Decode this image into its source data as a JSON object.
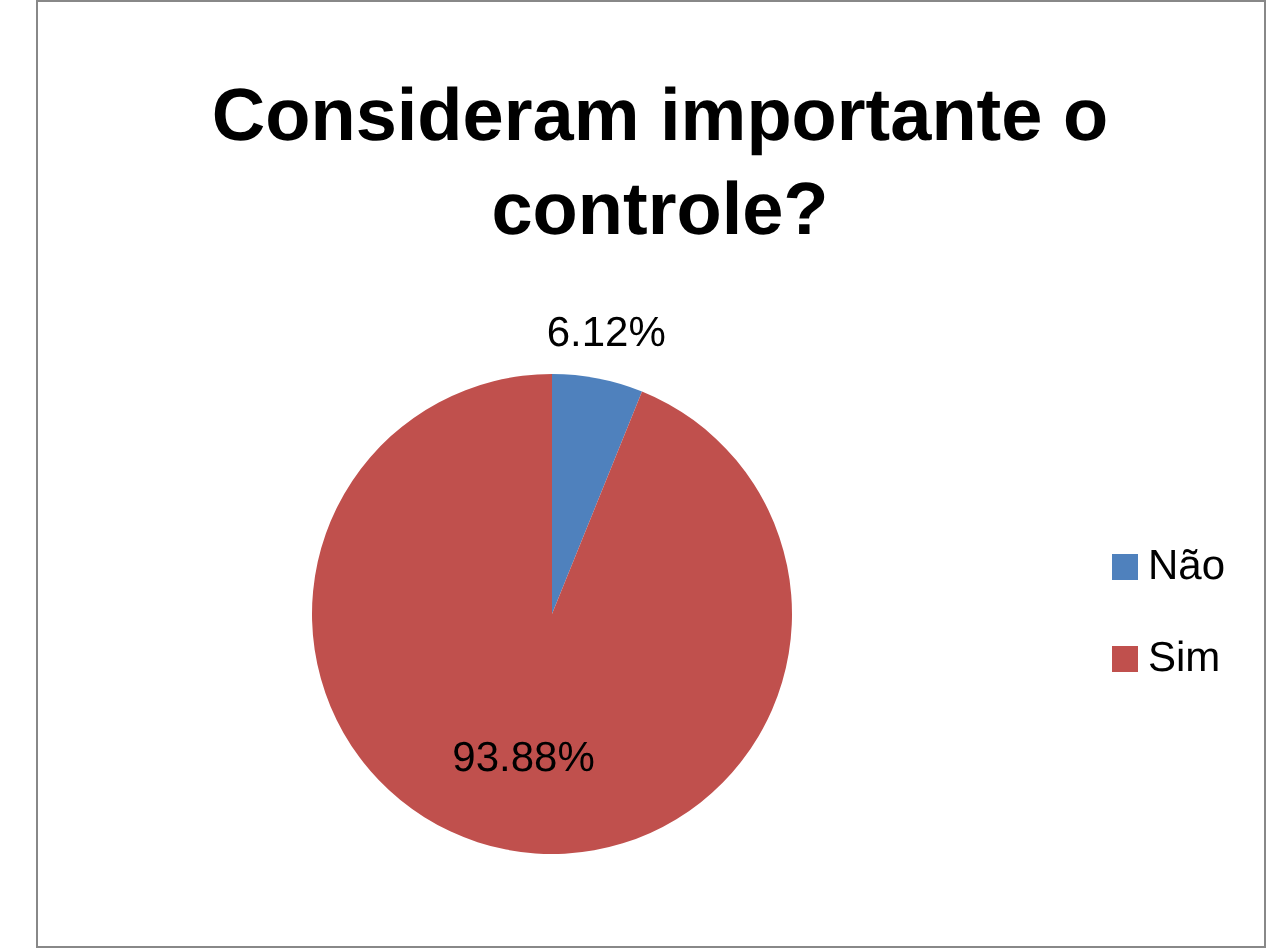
{
  "chart_data": {
    "type": "pie",
    "title": "Consideram importante o controle?",
    "categories": [
      "Não",
      "Sim"
    ],
    "values": [
      6.12,
      93.88
    ],
    "colors": [
      "#4f81bd",
      "#c0504d"
    ],
    "value_labels": [
      "6.12%",
      "93.88%"
    ],
    "legend": "right"
  }
}
